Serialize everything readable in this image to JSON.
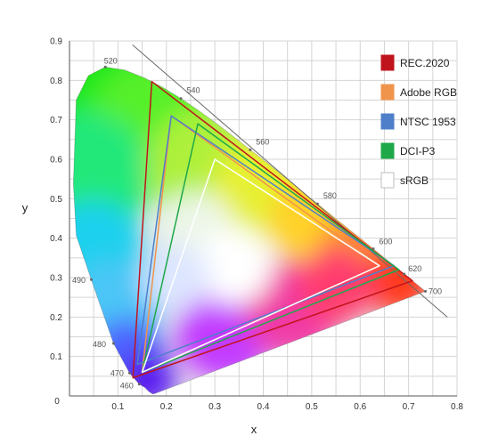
{
  "chart_data": {
    "type": "chromaticity",
    "xlabel": "x",
    "ylabel": "y",
    "xlim": [
      0,
      0.8
    ],
    "ylim": [
      0,
      0.9
    ],
    "x_ticks": [
      "0.1",
      "0.2",
      "0.3",
      "0.4",
      "0.5",
      "0.6",
      "0.7",
      "0.8"
    ],
    "y_ticks": [
      "0.1",
      "0.2",
      "0.3",
      "0.4",
      "0.5",
      "0.6",
      "0.7",
      "0.8",
      "0.9"
    ],
    "origin_label": "0",
    "grid": true,
    "locus": [
      [
        0.174,
        0.005
      ],
      [
        0.172,
        0.005
      ],
      [
        0.169,
        0.007
      ],
      [
        0.164,
        0.011
      ],
      [
        0.155,
        0.022
      ],
      [
        0.144,
        0.03
      ],
      [
        0.124,
        0.058
      ],
      [
        0.091,
        0.133
      ],
      [
        0.045,
        0.295
      ],
      [
        0.014,
        0.407
      ],
      [
        0.008,
        0.538
      ],
      [
        0.0139,
        0.7502
      ],
      [
        0.039,
        0.812
      ],
      [
        0.074,
        0.834
      ],
      [
        0.114,
        0.826
      ],
      [
        0.155,
        0.806
      ],
      [
        0.193,
        0.782
      ],
      [
        0.23,
        0.754
      ],
      [
        0.266,
        0.724
      ],
      [
        0.302,
        0.692
      ],
      [
        0.337,
        0.659
      ],
      [
        0.373,
        0.624
      ],
      [
        0.409,
        0.59
      ],
      [
        0.444,
        0.555
      ],
      [
        0.479,
        0.52
      ],
      [
        0.512,
        0.487
      ],
      [
        0.544,
        0.455
      ],
      [
        0.575,
        0.424
      ],
      [
        0.603,
        0.397
      ],
      [
        0.627,
        0.373
      ],
      [
        0.648,
        0.352
      ],
      [
        0.666,
        0.334
      ],
      [
        0.68,
        0.32
      ],
      [
        0.691,
        0.309
      ],
      [
        0.7,
        0.3
      ],
      [
        0.7347,
        0.2653
      ]
    ],
    "wavelength_labels": [
      {
        "label": "460",
        "x": 0.144,
        "y": 0.03
      },
      {
        "label": "470",
        "x": 0.124,
        "y": 0.058
      },
      {
        "label": "480",
        "x": 0.091,
        "y": 0.133
      },
      {
        "label": "490",
        "x": 0.045,
        "y": 0.295
      },
      {
        "label": "520",
        "x": 0.074,
        "y": 0.834
      },
      {
        "label": "540",
        "x": 0.23,
        "y": 0.754
      },
      {
        "label": "560",
        "x": 0.373,
        "y": 0.624
      },
      {
        "label": "580",
        "x": 0.512,
        "y": 0.487
      },
      {
        "label": "600",
        "x": 0.627,
        "y": 0.373
      },
      {
        "label": "620",
        "x": 0.691,
        "y": 0.309
      },
      {
        "label": "700",
        "x": 0.7347,
        "y": 0.2653
      }
    ],
    "series": [
      {
        "name": "REC.2020",
        "color": "#c0141c",
        "points": [
          [
            0.708,
            0.292
          ],
          [
            0.17,
            0.797
          ],
          [
            0.131,
            0.046
          ]
        ]
      },
      {
        "name": "Adobe RGB",
        "color": "#f0944c",
        "points": [
          [
            0.64,
            0.33
          ],
          [
            0.21,
            0.71
          ],
          [
            0.15,
            0.06
          ]
        ]
      },
      {
        "name": "NTSC 1953",
        "color": "#4f7fc8",
        "points": [
          [
            0.67,
            0.33
          ],
          [
            0.21,
            0.71
          ],
          [
            0.14,
            0.08
          ]
        ]
      },
      {
        "name": "DCI-P3",
        "color": "#1fa84a",
        "points": [
          [
            0.68,
            0.32
          ],
          [
            0.265,
            0.69
          ],
          [
            0.15,
            0.06
          ]
        ]
      },
      {
        "name": "sRGB",
        "color": "#ffffff",
        "points": [
          [
            0.64,
            0.33
          ],
          [
            0.3,
            0.6
          ],
          [
            0.15,
            0.06
          ]
        ]
      }
    ],
    "legend_position": "top-right"
  }
}
